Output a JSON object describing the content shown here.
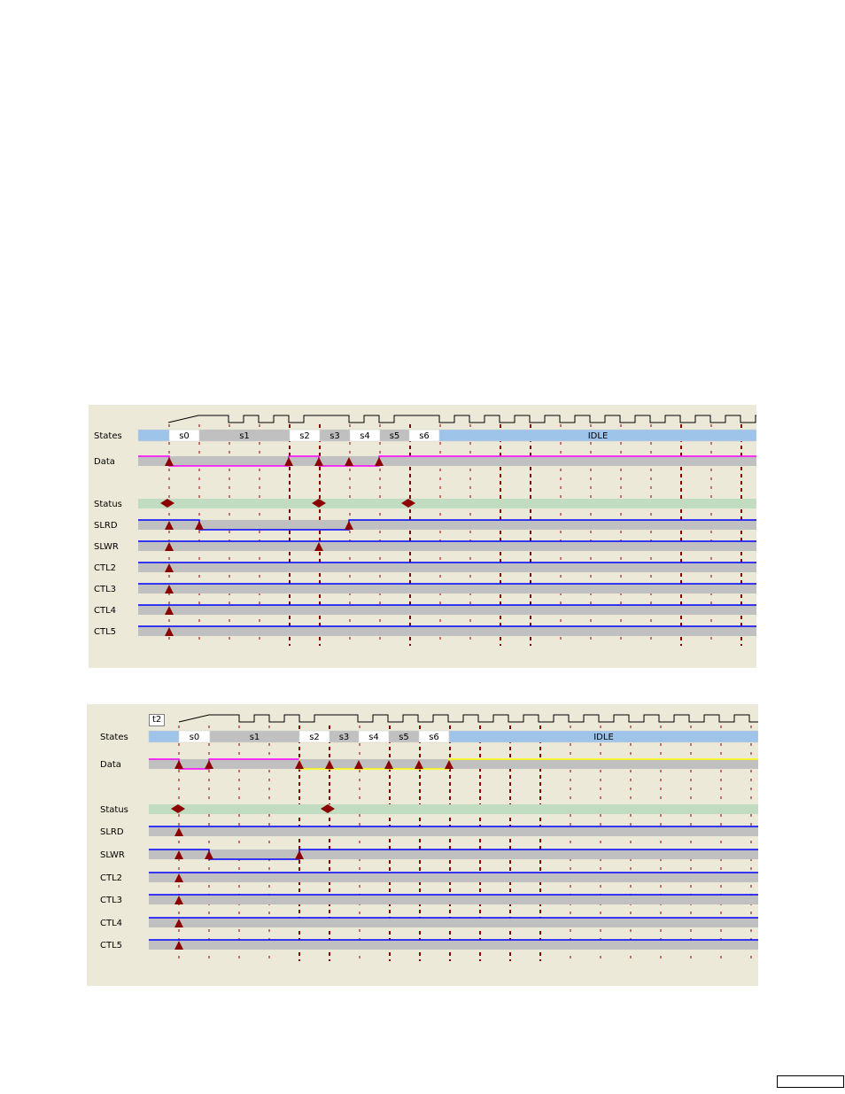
{
  "colors": {
    "panel_bg": "#ece9d8",
    "bus_gray": "#c0c0c0",
    "status_green": "#c2dcc2",
    "idle_blue": "#9fc4ea",
    "state_gray": "#c0c0c0",
    "state_white": "#ffffff",
    "line_blue": "#0000ff",
    "line_magenta": "#ff00ff",
    "line_yellow": "#ffff00",
    "marker_red": "#8b0000",
    "grid_red": "#8b0000"
  },
  "icons": {
    "marker": "triangle-marker-icon",
    "status_marker": "diamond-marker-icon"
  },
  "diagrams": [
    {
      "tag": "",
      "rows": [
        "States",
        "Data",
        "Status",
        "SLRD",
        "SLWR",
        "CTL2",
        "CTL3",
        "CTL4",
        "CTL5"
      ],
      "states": [
        {
          "label": "",
          "kind": "idle"
        },
        {
          "label": "s0",
          "kind": "white"
        },
        {
          "label": "s1",
          "kind": "gray"
        },
        {
          "label": "s2",
          "kind": "white"
        },
        {
          "label": "s3",
          "kind": "gray"
        },
        {
          "label": "s4",
          "kind": "white"
        },
        {
          "label": "s5",
          "kind": "gray"
        },
        {
          "label": "s6",
          "kind": "white"
        },
        {
          "label": "IDLE",
          "kind": "idle"
        }
      ]
    },
    {
      "tag": "t2",
      "rows": [
        "States",
        "Data",
        "Status",
        "SLRD",
        "SLWR",
        "CTL2",
        "CTL3",
        "CTL4",
        "CTL5"
      ],
      "states": [
        {
          "label": "",
          "kind": "idle"
        },
        {
          "label": "s0",
          "kind": "white"
        },
        {
          "label": "s1",
          "kind": "gray"
        },
        {
          "label": "s2",
          "kind": "white"
        },
        {
          "label": "s3",
          "kind": "gray"
        },
        {
          "label": "s4",
          "kind": "white"
        },
        {
          "label": "s5",
          "kind": "gray"
        },
        {
          "label": "s6",
          "kind": "white"
        },
        {
          "label": "IDLE",
          "kind": "idle"
        }
      ]
    }
  ]
}
